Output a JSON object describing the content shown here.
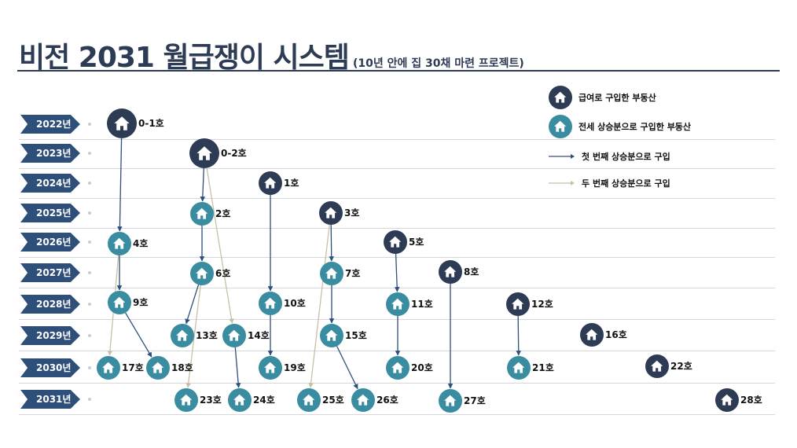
{
  "title": {
    "main": "비전 2031 월급쟁이 시스템",
    "sub": "(10년 안에 집 30채 마련 프로젝트)"
  },
  "years": [
    "2022년",
    "2023년",
    "2024년",
    "2025년",
    "2026년",
    "2027년",
    "2028년",
    "2029년",
    "2030년",
    "2031년"
  ],
  "legend": {
    "salary_house": "급여로 구입한 부동산",
    "jeonse_house": "전세 상승분으로 구입한 부동산",
    "first_arrow": "첫 번째 상승분으로 구입",
    "second_arrow": "두 번째 상승분으로 구입"
  },
  "colors": {
    "salary_house": "#2e3b54",
    "jeonse_house": "#3a8ca0",
    "first_arrow": "#2e4f7a",
    "second_arrow": "#c8c0a2",
    "year_tag": "#2e4f7a"
  },
  "icon": "house-icon",
  "houses": [
    {
      "id": "0-1",
      "label": "0-1호",
      "year": 2022,
      "kind": "salary"
    },
    {
      "id": "0-2",
      "label": "0-2호",
      "year": 2023,
      "kind": "salary"
    },
    {
      "id": "1",
      "label": "1호",
      "year": 2024,
      "kind": "salary"
    },
    {
      "id": "2",
      "label": "2호",
      "year": 2025,
      "kind": "jeonse"
    },
    {
      "id": "3",
      "label": "3호",
      "year": 2025,
      "kind": "salary"
    },
    {
      "id": "4",
      "label": "4호",
      "year": 2026,
      "kind": "jeonse"
    },
    {
      "id": "5",
      "label": "5호",
      "year": 2026,
      "kind": "salary"
    },
    {
      "id": "6",
      "label": "6호",
      "year": 2027,
      "kind": "jeonse"
    },
    {
      "id": "7",
      "label": "7호",
      "year": 2027,
      "kind": "jeonse"
    },
    {
      "id": "8",
      "label": "8호",
      "year": 2027,
      "kind": "salary"
    },
    {
      "id": "9",
      "label": "9호",
      "year": 2028,
      "kind": "jeonse"
    },
    {
      "id": "10",
      "label": "10호",
      "year": 2028,
      "kind": "jeonse"
    },
    {
      "id": "11",
      "label": "11호",
      "year": 2028,
      "kind": "jeonse"
    },
    {
      "id": "12",
      "label": "12호",
      "year": 2028,
      "kind": "salary"
    },
    {
      "id": "13",
      "label": "13호",
      "year": 2029,
      "kind": "jeonse"
    },
    {
      "id": "14",
      "label": "14호",
      "year": 2029,
      "kind": "jeonse"
    },
    {
      "id": "15",
      "label": "15호",
      "year": 2029,
      "kind": "jeonse"
    },
    {
      "id": "16",
      "label": "16호",
      "year": 2029,
      "kind": "salary"
    },
    {
      "id": "17",
      "label": "17호",
      "year": 2030,
      "kind": "jeonse"
    },
    {
      "id": "18",
      "label": "18호",
      "year": 2030,
      "kind": "jeonse"
    },
    {
      "id": "19",
      "label": "19호",
      "year": 2030,
      "kind": "jeonse"
    },
    {
      "id": "20",
      "label": "20호",
      "year": 2030,
      "kind": "jeonse"
    },
    {
      "id": "21",
      "label": "21호",
      "year": 2030,
      "kind": "jeonse"
    },
    {
      "id": "22",
      "label": "22호",
      "year": 2030,
      "kind": "salary"
    },
    {
      "id": "23",
      "label": "23호",
      "year": 2031,
      "kind": "jeonse"
    },
    {
      "id": "24",
      "label": "24호",
      "year": 2031,
      "kind": "jeonse"
    },
    {
      "id": "25",
      "label": "25호",
      "year": 2031,
      "kind": "jeonse"
    },
    {
      "id": "26",
      "label": "26호",
      "year": 2031,
      "kind": "jeonse"
    },
    {
      "id": "27",
      "label": "27호",
      "year": 2031,
      "kind": "jeonse"
    },
    {
      "id": "28",
      "label": "28호",
      "year": 2031,
      "kind": "salary"
    }
  ],
  "links": [
    {
      "from": "0-1",
      "to": "4",
      "kind": "first"
    },
    {
      "from": "0-2",
      "to": "2",
      "kind": "first"
    },
    {
      "from": "0-2",
      "to": "14",
      "kind": "second"
    },
    {
      "from": "1",
      "to": "10",
      "kind": "first"
    },
    {
      "from": "2",
      "to": "6",
      "kind": "first"
    },
    {
      "from": "3",
      "to": "7",
      "kind": "first"
    },
    {
      "from": "3",
      "to": "25",
      "kind": "second"
    },
    {
      "from": "4",
      "to": "9",
      "kind": "first"
    },
    {
      "from": "4",
      "to": "17",
      "kind": "second"
    },
    {
      "from": "5",
      "to": "11",
      "kind": "first"
    },
    {
      "from": "6",
      "to": "13",
      "kind": "first"
    },
    {
      "from": "6",
      "to": "23",
      "kind": "second"
    },
    {
      "from": "7",
      "to": "15",
      "kind": "first"
    },
    {
      "from": "8",
      "to": "27",
      "kind": "first"
    },
    {
      "from": "9",
      "to": "18",
      "kind": "first"
    },
    {
      "from": "10",
      "to": "19",
      "kind": "first"
    },
    {
      "from": "11",
      "to": "20",
      "kind": "first"
    },
    {
      "from": "12",
      "to": "21",
      "kind": "first"
    },
    {
      "from": "14",
      "to": "24",
      "kind": "first"
    },
    {
      "from": "15",
      "to": "26",
      "kind": "first"
    }
  ]
}
